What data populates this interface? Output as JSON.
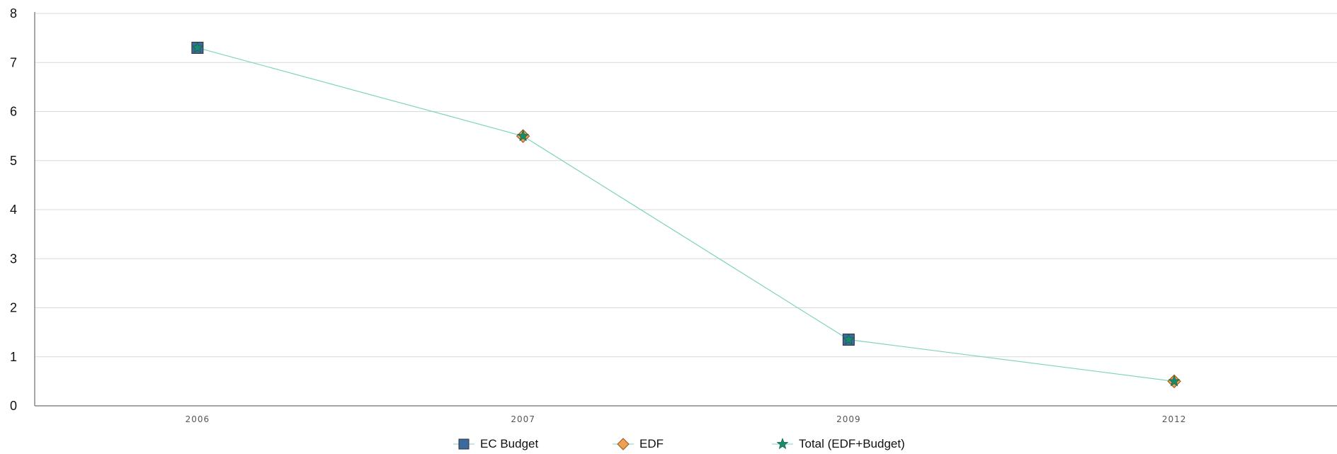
{
  "chart_data": {
    "type": "line",
    "categories": [
      "2006",
      "2007",
      "2009",
      "2012"
    ],
    "series": [
      {
        "name": "EC Budget",
        "marker": "square",
        "color": "#3b6aa0",
        "values": [
          7.3,
          null,
          1.35,
          null
        ]
      },
      {
        "name": "EDF",
        "marker": "diamond",
        "color": "#f0a050",
        "values": [
          null,
          5.5,
          null,
          0.5
        ]
      },
      {
        "name": "Total (EDF+Budget)",
        "marker": "star",
        "color": "#1a8a6a",
        "line_color": "#7fd3c0",
        "values": [
          7.3,
          5.5,
          1.35,
          0.5
        ]
      }
    ],
    "ylim": [
      0,
      8
    ],
    "yticks": [
      "0",
      "1",
      "2",
      "3",
      "4",
      "5",
      "6",
      "7",
      "8"
    ],
    "grid": true,
    "legend_position": "bottom"
  }
}
